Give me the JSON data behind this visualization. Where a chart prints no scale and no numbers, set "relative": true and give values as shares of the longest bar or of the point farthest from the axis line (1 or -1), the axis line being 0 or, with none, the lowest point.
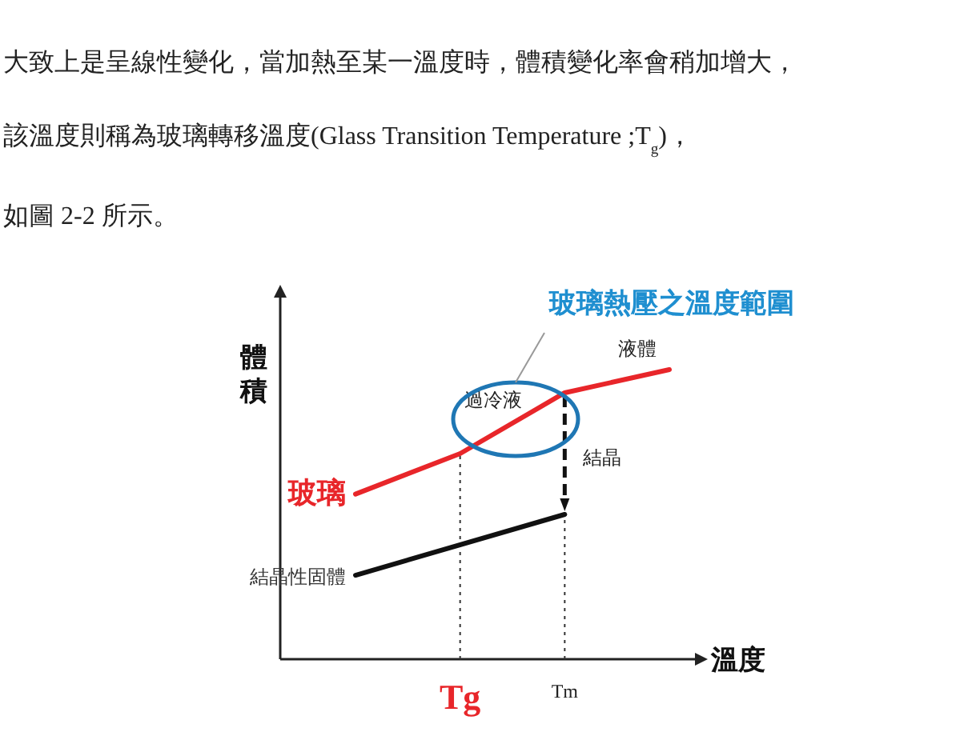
{
  "chart_data": {
    "type": "line",
    "title": "玻璃熱壓之溫度範圍",
    "xlabel": "溫度",
    "ylabel": "體積",
    "relative": true,
    "marker": "none",
    "line_style": "solid",
    "categories": [
      null,
      "Tg",
      "Tm",
      null
    ],
    "series": [
      {
        "name": "玻璃",
        "color": "#e8262a",
        "values": [
          0.57,
          0.71,
          0.92,
          1
        ]
      },
      {
        "name": "結晶性固體",
        "color": "#111111",
        "values": [
          0.29,
          null,
          0.5,
          null
        ]
      }
    ],
    "ref_lines": [
      {
        "axis": "x",
        "value": "Tg",
        "color": "#333333",
        "line_style": "dotted"
      },
      {
        "axis": "x",
        "value": "Tm",
        "color": "#333333",
        "line_style": "dotted"
      }
    ],
    "annotations": [
      "大致上是呈線性變化，當加熱至某一溫度時，體積變化率會稍加增大，",
      "該溫度則稱為玻璃轉移溫度(Glass Transition Temperature ;T$_{g}$)，",
      "如圖 2-2 所示。",
      "液體",
      "過冷液",
      "結晶"
    ]
  }
}
